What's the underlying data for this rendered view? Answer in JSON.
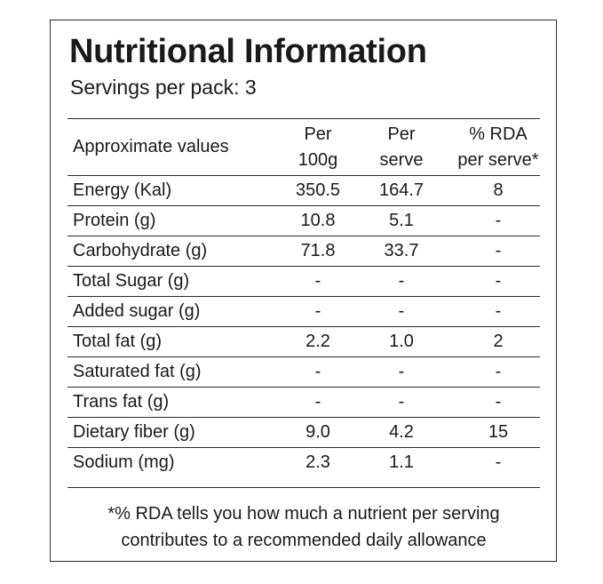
{
  "title": "Nutritional Information",
  "servings": "Servings per pack: 3",
  "header": {
    "col0": "Approximate values",
    "col1": [
      "Per",
      "100g"
    ],
    "col2": [
      "Per",
      "serve"
    ],
    "col3": [
      "% RDA",
      "per serve*"
    ]
  },
  "rows": [
    {
      "name": "Energy (Kal)",
      "per100g": "350.5",
      "perServe": "164.7",
      "rda": "8"
    },
    {
      "name": "Protein (g)",
      "per100g": "10.8",
      "perServe": "5.1",
      "rda": "-"
    },
    {
      "name": "Carbohydrate (g)",
      "per100g": "71.8",
      "perServe": "33.7",
      "rda": "-"
    },
    {
      "name": "Total Sugar (g)",
      "per100g": "-",
      "perServe": "-",
      "rda": "-"
    },
    {
      "name": "Added sugar (g)",
      "per100g": "-",
      "perServe": "-",
      "rda": "-"
    },
    {
      "name": "Total fat (g)",
      "per100g": "2.2",
      "perServe": "1.0",
      "rda": "2"
    },
    {
      "name": "Saturated fat (g)",
      "per100g": "-",
      "perServe": "-",
      "rda": "-"
    },
    {
      "name": "Trans fat (g)",
      "per100g": "-",
      "perServe": "-",
      "rda": "-"
    },
    {
      "name": "Dietary fiber (g)",
      "per100g": "9.0",
      "perServe": "4.2",
      "rda": "15"
    },
    {
      "name": "Sodium (mg)",
      "per100g": "2.3",
      "perServe": "1.1",
      "rda": "-"
    }
  ],
  "footnote": [
    "*% RDA tells you how much a nutrient per serving",
    "contributes to a recommended daily allowance"
  ]
}
